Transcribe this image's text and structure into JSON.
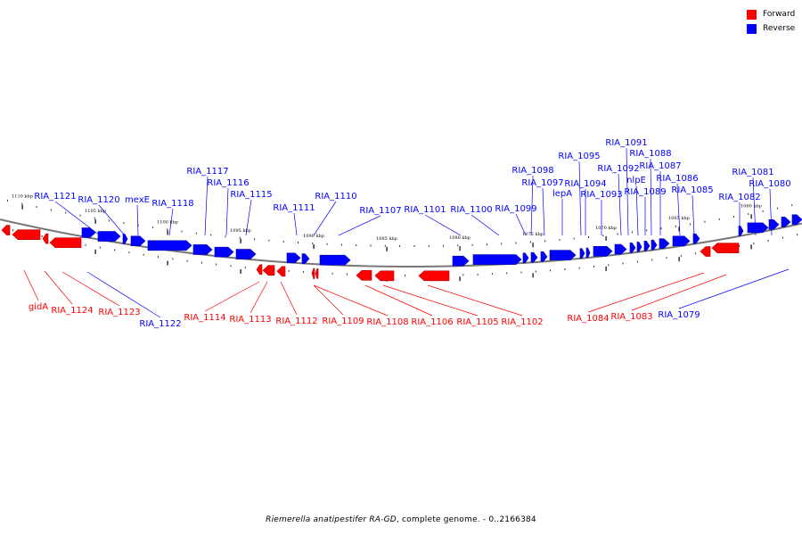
{
  "legend": {
    "forward_label": "Forward",
    "reverse_label": "Reverse",
    "forward_color": "#ff0000",
    "reverse_color": "#0000ff"
  },
  "caption": {
    "organism": "Riemerella anatipestifer RA-GD",
    "rest": ", complete genome. - 0..2166384"
  },
  "scale_labels": [
    "1110 kbp",
    "1105 kbp",
    "1100 kbp",
    "1095 kbp",
    "1090 kbp",
    "1085 kbp",
    "1080 kbp",
    "1075 kbp",
    "1070 kbp",
    "1065 kbp",
    "1060 kbp"
  ],
  "reverse_genes": [
    "RIA_1121",
    "RIA_1120",
    "mexE",
    "RIA_1118",
    "RIA_1117",
    "RIA_1116",
    "RIA_1115",
    "RIA_1111",
    "RIA_1110",
    "RIA_1107",
    "RIA_1101",
    "RIA_1100",
    "RIA_1099",
    "RIA_1098",
    "RIA_1097",
    "lepA",
    "RIA_1095",
    "RIA_1094",
    "RIA_1093",
    "RIA_1092",
    "RIA_1091",
    "nlpE",
    "RIA_1089",
    "RIA_1088",
    "RIA_1087",
    "RIA_1086",
    "RIA_1085",
    "RIA_1082",
    "RIA_1081",
    "RIA_1080"
  ],
  "forward_genes": [
    "gidA",
    "RIA_1124",
    "RIA_1123",
    "RIA_1114",
    "RIA_1113",
    "RIA_1112",
    "RIA_1109",
    "RIA_1108",
    "RIA_1106",
    "RIA_1105",
    "RIA_1102",
    "RIA_1084",
    "RIA_1083"
  ],
  "bottom_reverse_genes": [
    "RIA_1122",
    "RIA_1079"
  ]
}
